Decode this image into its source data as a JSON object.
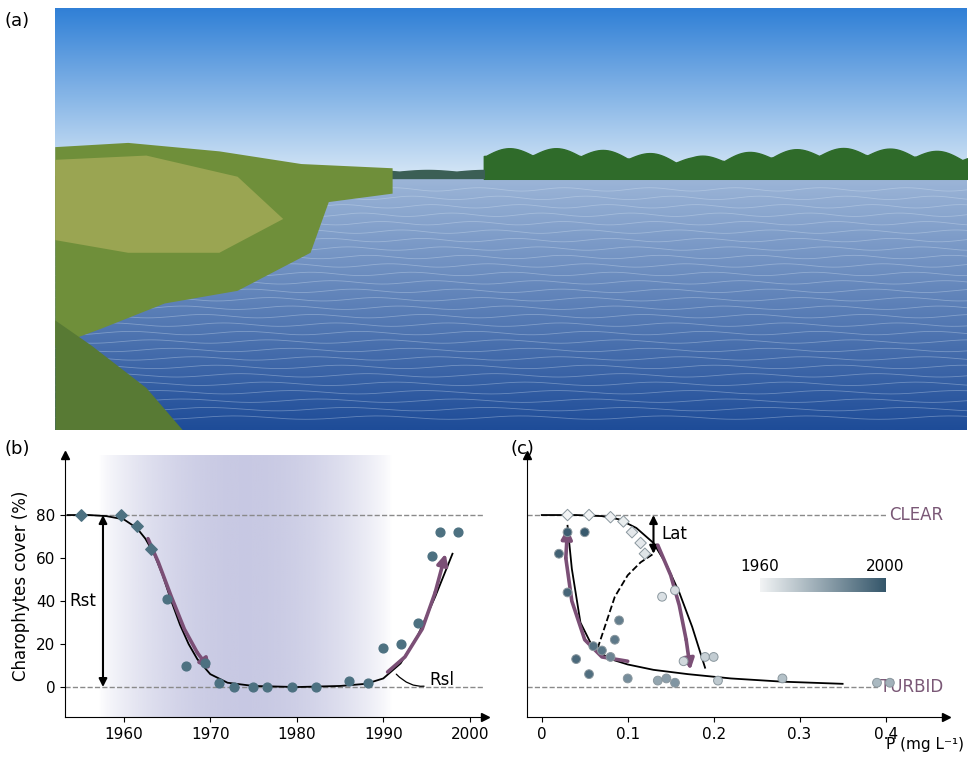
{
  "chart_data": [
    {
      "type": "photo",
      "panel_label": "(a)"
    },
    {
      "type": "scatter",
      "panel_label": "(b)",
      "ylabel": "Charophytes cover (%)",
      "xlim": [
        1953.2,
        2001.7
      ],
      "ylim": [
        -14,
        108
      ],
      "xticks": [
        1960,
        1970,
        1980,
        1990,
        2000
      ],
      "yticks": [
        0,
        20,
        40,
        60,
        80
      ],
      "span": [
        1957,
        1991
      ],
      "hlines": [
        {
          "y": 80
        },
        {
          "y": 0
        }
      ],
      "series": [
        {
          "marker": "diamond",
          "color": "#4d7181",
          "x": [
            1955.1,
            1959.7,
            1961.5,
            1963.2
          ],
          "values": [
            80,
            80,
            75,
            64
          ]
        },
        {
          "marker": "circle",
          "color": "#4d7181",
          "x": [
            1965,
            1967.2,
            1969.4,
            1971,
            1972.8,
            1974.9,
            1976.6,
            1979.4,
            1982.2,
            1986,
            1988.2,
            1990,
            1992,
            1994,
            1995.6,
            1996.6,
            1998.6
          ],
          "values": [
            41,
            10,
            11,
            2,
            0,
            0,
            0,
            0,
            0,
            3,
            2,
            18,
            20,
            30,
            61,
            72,
            72
          ]
        }
      ],
      "curves": [
        {
          "color": "#000000",
          "line_style": "solid",
          "x": [
            1953.5,
            1956,
            1958,
            1960,
            1961.5,
            1962.5,
            1963.5,
            1964.5,
            1965.5,
            1966.5,
            1967.5,
            1968.5,
            1970,
            1972,
            1975,
            1980,
            1985,
            1988,
            1990,
            1992,
            1994,
            1996,
            1998
          ],
          "values": [
            80,
            80,
            79.5,
            78,
            74,
            69,
            62,
            52,
            40,
            29,
            20,
            13,
            6,
            2,
            0.5,
            0,
            0.5,
            1.5,
            4,
            11,
            24,
            42,
            62
          ]
        }
      ],
      "trajectories": [
        {
          "color": "#7b4f76",
          "x": [
            1962.8,
            1964,
            1965.5,
            1967,
            1968.5,
            1970
          ],
          "values": [
            69,
            58,
            42,
            27,
            16,
            8
          ]
        },
        {
          "color": "#7b4f76",
          "x": [
            1990.5,
            1992.5,
            1994.5,
            1996,
            1997.2
          ],
          "values": [
            7,
            14,
            27,
            44,
            62
          ]
        }
      ],
      "annotations": [
        {
          "text": "Rst",
          "x": 1957.6,
          "y_from": 0,
          "y_to": 80
        },
        {
          "text": "Rsl",
          "x": 1991.5,
          "y": 6
        }
      ]
    },
    {
      "type": "scatter",
      "panel_label": "(c)",
      "xlabel": "P (mg L⁻¹)",
      "xlim": [
        -0.017,
        0.47
      ],
      "ylim": [
        -14,
        108
      ],
      "xticks": [
        0,
        0.1,
        0.2,
        0.3,
        0.4
      ],
      "yticks": [],
      "tick_labels": "x",
      "hlines": [
        {
          "y": 80,
          "label": "CLEAR"
        },
        {
          "y": 0,
          "label": "TURBID"
        }
      ],
      "colorbar": {
        "range": [
          1960,
          2000
        ],
        "ticks": [
          1960,
          2000
        ],
        "colors": [
          "#f2f4f5",
          "#34566a"
        ]
      },
      "series": [
        {
          "marker": "diamond",
          "x": [
            0.03,
            0.055,
            0.08,
            0.095,
            0.105,
            0.115,
            0.12
          ],
          "values": [
            80,
            80,
            79,
            77,
            72,
            67,
            62
          ],
          "years": [
            1956,
            1959,
            1961,
            1962,
            1963,
            1963,
            1964
          ]
        },
        {
          "marker": "circle",
          "x": [
            0.14,
            0.155,
            0.165,
            0.19,
            0.2,
            0.205,
            0.28,
            0.39,
            0.405,
            0.135,
            0.145,
            0.155,
            0.1,
            0.08,
            0.09,
            0.085,
            0.07,
            0.06,
            0.055,
            0.04,
            0.03,
            0.02,
            0.03,
            0.05
          ],
          "values": [
            42,
            45,
            12,
            14,
            14,
            3,
            4,
            2,
            2,
            3,
            4,
            2,
            4,
            14,
            31,
            22,
            17,
            19,
            6,
            13,
            44,
            62,
            72,
            72
          ],
          "years": [
            1965,
            1966,
            1967,
            1969,
            1970,
            1971,
            1973,
            1975,
            1977,
            1980,
            1982,
            1984,
            1986,
            1988,
            1990,
            1991,
            1992,
            1993,
            1994,
            1995,
            1996,
            1997,
            1998,
            1999
          ]
        }
      ],
      "curves": [
        {
          "color": "#000000",
          "line_style": "solid",
          "x": [
            0,
            0.04,
            0.07,
            0.09,
            0.11,
            0.13,
            0.145,
            0.16,
            0.175,
            0.19
          ],
          "values": [
            80,
            80,
            79.5,
            78,
            74,
            67,
            57,
            44,
            28,
            9
          ]
        },
        {
          "color": "#000000",
          "line_style": "solid",
          "x": [
            0.03,
            0.035,
            0.045,
            0.06,
            0.08,
            0.1,
            0.13,
            0.17,
            0.22,
            0.28,
            0.35
          ],
          "values": [
            75,
            55,
            30,
            18,
            13,
            10.5,
            8,
            6,
            4,
            2.5,
            1.5
          ]
        },
        {
          "color": "#000000",
          "line_style": "dashed",
          "x": [
            0.065,
            0.075,
            0.085,
            0.1,
            0.115,
            0.13
          ],
          "values": [
            18,
            30,
            42,
            52,
            58,
            62
          ]
        }
      ],
      "trajectories": [
        {
          "color": "#7b4f76",
          "x": [
            0.135,
            0.15,
            0.16,
            0.168,
            0.173
          ],
          "values": [
            66,
            52,
            38,
            22,
            8
          ]
        },
        {
          "color": "#7b4f76",
          "x": [
            0.1,
            0.07,
            0.05,
            0.035,
            0.028,
            0.03
          ],
          "values": [
            12,
            14,
            22,
            40,
            60,
            74
          ]
        }
      ],
      "annotations": [
        {
          "text": "Lat",
          "x": 0.13,
          "y_from": 62,
          "y_to": 80
        }
      ]
    }
  ]
}
